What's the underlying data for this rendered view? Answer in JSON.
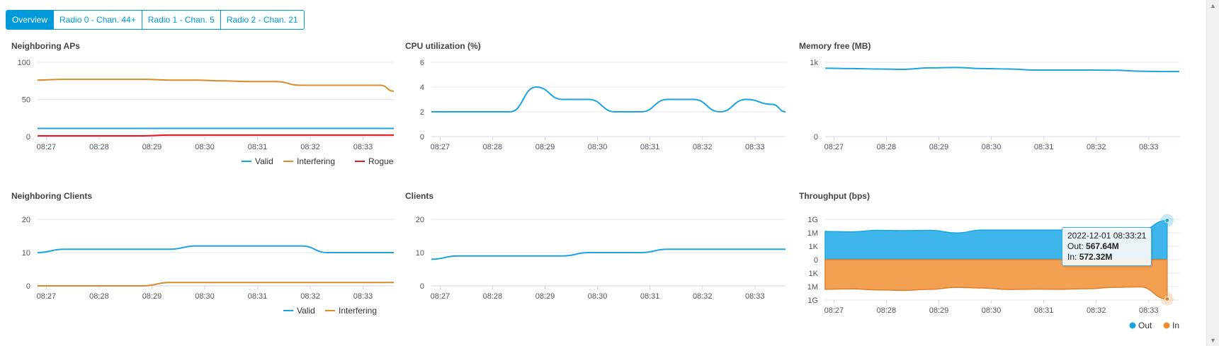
{
  "tabs": [
    {
      "label": "Overview",
      "active": true
    },
    {
      "label": "Radio 0 - Chan. 44+",
      "active": false
    },
    {
      "label": "Radio 1 - Chan. 5",
      "active": false
    },
    {
      "label": "Radio 2 - Chan. 21",
      "active": false
    }
  ],
  "time_labels": [
    "08:27",
    "08:28",
    "08:29",
    "08:30",
    "08:31",
    "08:32",
    "08:33"
  ],
  "colors": {
    "valid": "#1aa5e1",
    "interfering": "#d98b2b",
    "rogue": "#e8161d",
    "out": "#3eb6ec",
    "in": "#f4a052",
    "grid": "#e6e6e6"
  },
  "panels": {
    "neighboring_aps": {
      "title": "Neighboring APs",
      "chart_data": {
        "type": "line",
        "x": [
          "08:26:50",
          "08:27:20",
          "08:27:50",
          "08:28:20",
          "08:28:50",
          "08:29:20",
          "08:29:50",
          "08:30:20",
          "08:30:50",
          "08:31:20",
          "08:31:50",
          "08:32:20",
          "08:32:50",
          "08:33:20",
          "08:33:35"
        ],
        "ylim": [
          0,
          100
        ],
        "yticks": [
          "0",
          "50",
          "100"
        ],
        "series": [
          {
            "name": "Valid",
            "color": "#1aa5e1",
            "values": [
              11,
              11,
              11,
              11,
              11,
              11,
              11,
              11,
              11,
              11,
              11,
              11,
              11,
              11,
              11
            ]
          },
          {
            "name": "Interfering",
            "color": "#d98b2b",
            "values": [
              76,
              77,
              77,
              77,
              77,
              76,
              76,
              75,
              74,
              74,
              69,
              69,
              69,
              69,
              61
            ]
          },
          {
            "name": "Rogue",
            "color": "#e8161d",
            "values": [
              1,
              1,
              1,
              1,
              1,
              2,
              2,
              2,
              2,
              2,
              2,
              2,
              2,
              2,
              2
            ]
          }
        ]
      },
      "legend": [
        "Valid",
        "Interfering",
        "Rogue"
      ]
    },
    "cpu": {
      "title": "CPU utilization (%)",
      "chart_data": {
        "type": "line",
        "x": [
          "08:26:50",
          "08:27:20",
          "08:27:50",
          "08:28:20",
          "08:28:50",
          "08:29:20",
          "08:29:50",
          "08:30:20",
          "08:30:50",
          "08:31:20",
          "08:31:50",
          "08:32:20",
          "08:32:50",
          "08:33:20",
          "08:33:35"
        ],
        "ylim": [
          0,
          6
        ],
        "yticks": [
          "0",
          "2",
          "4",
          "6"
        ],
        "series": [
          {
            "name": "",
            "color": "#1aa5e1",
            "values": [
              2,
              2,
              2,
              2,
              4,
              3,
              3,
              2,
              2,
              3,
              3,
              2,
              3,
              2.6,
              2
            ]
          }
        ]
      }
    },
    "memory": {
      "title": "Memory free (MB)",
      "chart_data": {
        "type": "line",
        "x": [
          "08:26:50",
          "08:27:20",
          "08:27:50",
          "08:28:20",
          "08:28:50",
          "08:29:20",
          "08:29:50",
          "08:30:20",
          "08:30:50",
          "08:31:20",
          "08:31:50",
          "08:32:20",
          "08:32:50",
          "08:33:20",
          "08:33:35"
        ],
        "ylim": [
          0,
          1000
        ],
        "yticks": [
          "0",
          "1k"
        ],
        "series": [
          {
            "name": "",
            "color": "#1aa5e1",
            "values": [
              920,
              915,
              910,
              905,
              925,
              930,
              915,
              910,
              895,
              895,
              895,
              893,
              880,
              875,
              875
            ]
          }
        ]
      }
    },
    "neighboring_clients": {
      "title": "Neighboring Clients",
      "chart_data": {
        "type": "line",
        "x": [
          "08:26:50",
          "08:27:20",
          "08:27:50",
          "08:28:20",
          "08:28:50",
          "08:29:20",
          "08:29:50",
          "08:30:20",
          "08:30:50",
          "08:31:20",
          "08:31:50",
          "08:32:20",
          "08:32:50",
          "08:33:20",
          "08:33:35"
        ],
        "ylim": [
          0,
          20
        ],
        "yticks": [
          "0",
          "10",
          "20"
        ],
        "series": [
          {
            "name": "Valid",
            "color": "#1aa5e1",
            "values": [
              10,
              11,
              11,
              11,
              11,
              11,
              12,
              12,
              12,
              12,
              12,
              10,
              10,
              10,
              10
            ]
          },
          {
            "name": "Interfering",
            "color": "#d98b2b",
            "values": [
              0,
              0,
              0,
              0,
              0,
              1,
              1,
              1,
              1,
              1,
              1,
              1,
              1,
              1,
              1
            ]
          }
        ]
      },
      "legend": [
        "Valid",
        "Interfering"
      ]
    },
    "clients": {
      "title": "Clients",
      "chart_data": {
        "type": "line",
        "x": [
          "08:26:50",
          "08:27:20",
          "08:27:50",
          "08:28:20",
          "08:28:50",
          "08:29:20",
          "08:29:50",
          "08:30:20",
          "08:30:50",
          "08:31:20",
          "08:31:50",
          "08:32:20",
          "08:32:50",
          "08:33:20",
          "08:33:35"
        ],
        "ylim": [
          0,
          20
        ],
        "yticks": [
          "0",
          "10",
          "20"
        ],
        "series": [
          {
            "name": "",
            "color": "#1aa5e1",
            "values": [
              8,
              9,
              9,
              9,
              9,
              9,
              10,
              10,
              10,
              11,
              11,
              11,
              11,
              11,
              11
            ]
          }
        ]
      }
    },
    "throughput": {
      "title": "Throughput (bps)",
      "chart_data": {
        "type": "area",
        "x": [
          "08:26:50",
          "08:27:20",
          "08:27:50",
          "08:28:20",
          "08:28:50",
          "08:29:20",
          "08:29:50",
          "08:30:20",
          "08:30:50",
          "08:31:20",
          "08:31:50",
          "08:32:20",
          "08:32:50",
          "08:33:21"
        ],
        "yticks": [
          "1G",
          "1M",
          "1K",
          "0",
          "1K",
          "1M",
          "1G"
        ],
        "scale": "log",
        "series": [
          {
            "name": "Out",
            "color": "#3eb6ec",
            "values": [
              2000000,
              1600000,
              3500000,
              3000000,
              3500000,
              900000,
              4000000,
              4000000,
              4000000,
              4000000,
              3500000,
              3000000,
              3500000,
              567640000
            ]
          },
          {
            "name": "In",
            "color": "#f4a052",
            "values": [
              4000000,
              3200000,
              5500000,
              7000000,
              4000000,
              1500000,
              2200000,
              4500000,
              3800000,
              4000000,
              3000000,
              1500000,
              1200000,
              572320000
            ]
          }
        ]
      },
      "legend": [
        "Out",
        "In"
      ],
      "tooltip": {
        "date": "2022-12-01 08:33:21",
        "out_label": "Out:",
        "out_value": "567.64M",
        "in_label": "In:",
        "in_value": "572.32M"
      }
    }
  }
}
